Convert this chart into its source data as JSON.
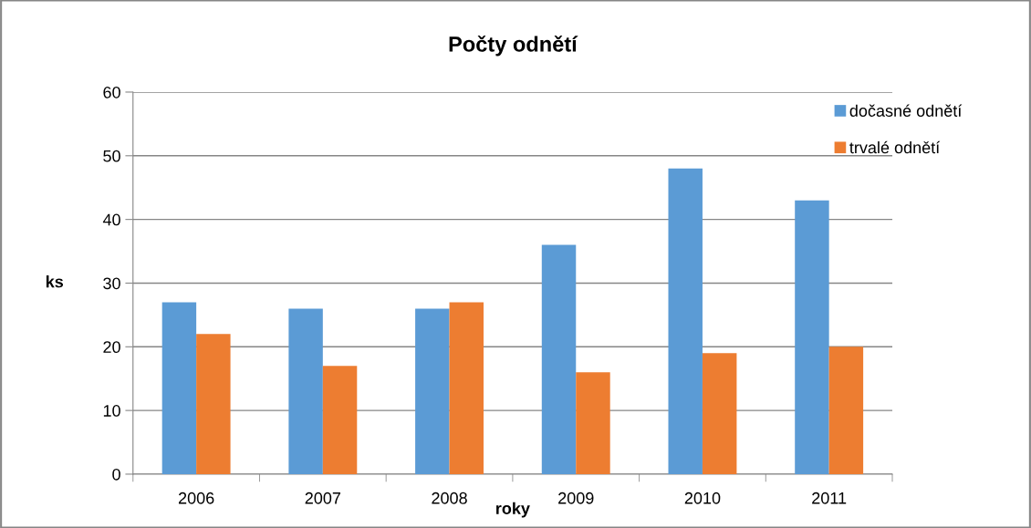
{
  "chart_data": {
    "type": "bar",
    "title": "Počty odnětí",
    "xlabel": "roky",
    "ylabel": "ks",
    "categories": [
      "2006",
      "2007",
      "2008",
      "2009",
      "2010",
      "2011"
    ],
    "series": [
      {
        "name": "dočasné odnětí",
        "color": "#5b9bd5",
        "values": [
          27,
          26,
          26,
          36,
          48,
          43
        ]
      },
      {
        "name": "trvalé odnětí",
        "color": "#ed7d31",
        "values": [
          22,
          17,
          27,
          16,
          19,
          20
        ]
      }
    ],
    "ylim": [
      0,
      60
    ],
    "yticks": [
      0,
      10,
      20,
      30,
      40,
      50,
      60
    ],
    "grid": "y",
    "legend": "top right"
  }
}
